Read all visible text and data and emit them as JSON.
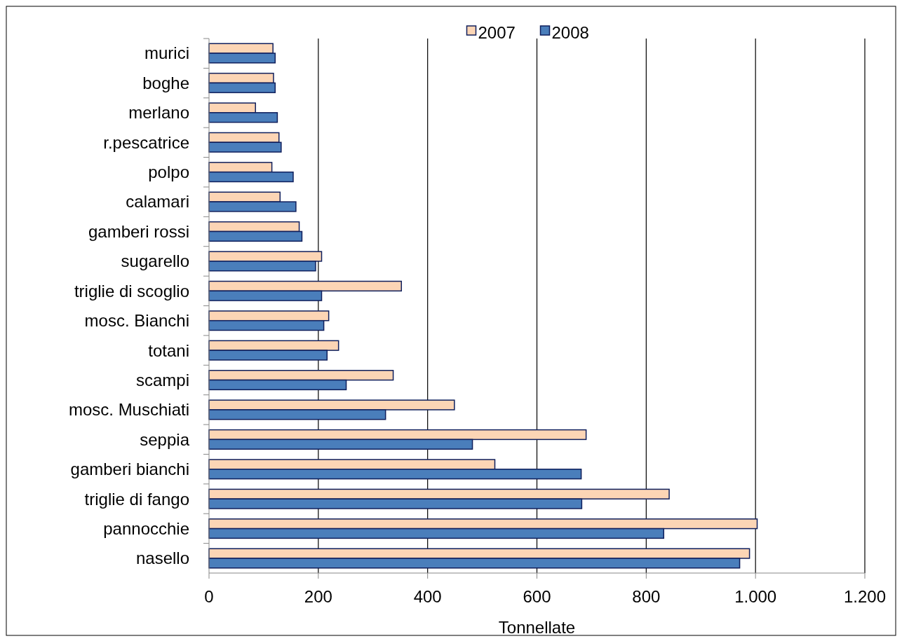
{
  "chart_data": {
    "type": "bar",
    "orientation": "horizontal",
    "xlabel": "Tonnellate",
    "categories": [
      "murici",
      "boghe",
      "merlano",
      "r.pescatrice",
      "polpo",
      "calamari",
      "gamberi rossi",
      "sugarello",
      "triglie di scoglio",
      "mosc. Bianchi",
      "totani",
      "scampi",
      "mosc. Muschiati",
      "seppia",
      "gamberi bianchi",
      "triglie di fango",
      "pannocchie",
      "nasello"
    ],
    "series": [
      {
        "name": "2007",
        "color": "#fcd5b5",
        "values": [
          117,
          118,
          85,
          128,
          115,
          130,
          165,
          206,
          352,
          219,
          237,
          337,
          449,
          690,
          523,
          842,
          1003,
          989
        ]
      },
      {
        "name": "2008",
        "color": "#4a7ebb",
        "values": [
          121,
          121,
          125,
          132,
          154,
          159,
          170,
          195,
          206,
          210,
          216,
          251,
          323,
          482,
          681,
          682,
          832,
          971
        ]
      }
    ],
    "xlim": [
      0,
      1200
    ],
    "xticks": [
      0,
      200,
      400,
      600,
      800,
      {
        "value": 1000,
        "label": "1.000"
      },
      {
        "value": 1200,
        "label": "1.200"
      }
    ],
    "grid": "x",
    "legend": "top"
  }
}
